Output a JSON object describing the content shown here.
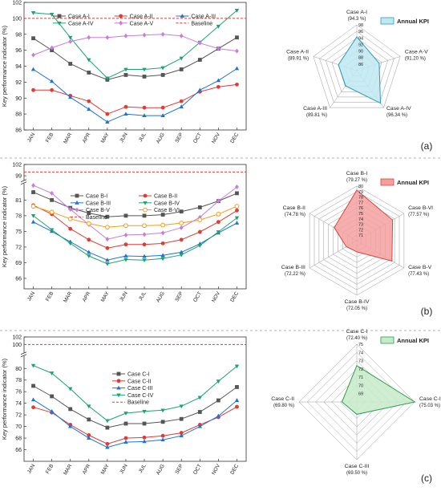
{
  "months": [
    "JAN",
    "FEB",
    "MAR",
    "APR",
    "MAY",
    "JUN",
    "JUL",
    "AUG",
    "SEP",
    "OCT",
    "NOV",
    "DEC"
  ],
  "chart_data": [
    {
      "type": "line",
      "panel_label": "(a)",
      "ylabel": "Key performance indicator (%)",
      "ylim": [
        86,
        102
      ],
      "yticks": [
        86,
        88,
        90,
        92,
        94,
        96,
        98,
        100,
        102
      ],
      "baseline": {
        "name": "Baseline",
        "value": 100,
        "color": "#e53935"
      },
      "series": [
        {
          "name": "Case A-I",
          "color": "#555555",
          "marker": "square",
          "values": [
            97.5,
            96.0,
            94.3,
            93.2,
            92.3,
            92.9,
            92.7,
            92.9,
            93.6,
            94.8,
            96.2,
            97.6
          ]
        },
        {
          "name": "Case A-II",
          "color": "#e53935",
          "marker": "circle",
          "values": [
            91.0,
            91.0,
            90.3,
            89.6,
            88.0,
            88.9,
            88.8,
            88.8,
            89.6,
            90.8,
            91.4,
            91.7
          ]
        },
        {
          "name": "Case A-III",
          "color": "#1e73d8",
          "marker": "triangle-up",
          "values": [
            93.6,
            92.1,
            90.1,
            88.6,
            87.0,
            88.0,
            87.8,
            87.8,
            88.9,
            91.0,
            92.2,
            93.7
          ]
        },
        {
          "name": "Case A-IV",
          "color": "#1aa56f",
          "marker": "triangle-down",
          "values": [
            100.7,
            100.5,
            97.6,
            94.8,
            92.5,
            93.6,
            93.6,
            93.8,
            95.0,
            97.0,
            99.0,
            101.0
          ]
        },
        {
          "name": "Case A-V",
          "color": "#c77ddc",
          "marker": "diamond",
          "values": [
            95.4,
            96.3,
            97.1,
            97.6,
            97.6,
            97.8,
            97.9,
            98.0,
            97.8,
            96.9,
            96.2,
            95.9
          ]
        }
      ],
      "legend_cols": 3,
      "radar": {
        "legend": "Annual KPI",
        "fill": "#bfe8f2",
        "stroke": "#2e9cb8",
        "rmin": 84,
        "rmax": 98,
        "ticks": [
          86,
          88,
          90,
          92,
          94,
          96,
          98
        ],
        "axes": [
          {
            "name": "Case A-I",
            "value_label": "(94.3 %)",
            "value": 94.3
          },
          {
            "name": "Case A-V",
            "value_label": "(91.20 %)",
            "value": 91.2
          },
          {
            "name": "Case A-IV",
            "value_label": "(96.34 %)",
            "value": 96.34
          },
          {
            "name": "Case A-III",
            "value_label": "(89.81 %)",
            "value": 89.81
          },
          {
            "name": "Case A-II",
            "value_label": "(89.91 %)",
            "value": 89.91
          }
        ]
      }
    },
    {
      "type": "line",
      "panel_label": "(b)",
      "ylabel": "Key performance indicator (%)",
      "ylim": [
        64,
        102
      ],
      "yticks": [
        66,
        69,
        72,
        75,
        78,
        81,
        99,
        102
      ],
      "axis_break": {
        "lower_max": 84,
        "upper_min": 98
      },
      "baseline": {
        "name": "Baseline",
        "value": 100,
        "color": "#e53935"
      },
      "series": [
        {
          "name": "Case B-I",
          "color": "#555555",
          "marker": "square",
          "values": [
            82.5,
            81.0,
            79.5,
            78.5,
            77.8,
            78.0,
            78.0,
            78.2,
            78.8,
            79.6,
            80.8,
            82.3
          ]
        },
        {
          "name": "Case B-II",
          "color": "#e53935",
          "marker": "circle",
          "values": [
            80.0,
            78.3,
            75.5,
            73.4,
            71.8,
            72.5,
            72.5,
            72.7,
            73.4,
            74.9,
            76.8,
            79.0
          ]
        },
        {
          "name": "Case B-III",
          "color": "#1e73d8",
          "marker": "triangle-up",
          "values": [
            76.8,
            75.0,
            73.0,
            71.0,
            69.5,
            70.3,
            70.2,
            70.4,
            71.0,
            72.6,
            74.7,
            76.6
          ]
        },
        {
          "name": "Case B-IV",
          "color": "#1aa56f",
          "marker": "triangle-down",
          "values": [
            78.0,
            75.3,
            72.7,
            70.3,
            68.8,
            69.6,
            69.5,
            69.8,
            70.5,
            72.3,
            74.9,
            77.6
          ]
        },
        {
          "name": "Case B-V",
          "color": "#c77ddc",
          "marker": "diamond",
          "values": [
            83.8,
            82.3,
            79.2,
            76.3,
            73.5,
            74.3,
            74.4,
            74.7,
            75.7,
            77.7,
            80.8,
            83.5
          ]
        },
        {
          "name": "Case B-VI",
          "color": "#f39c12",
          "marker": "circle-open",
          "values": [
            79.8,
            78.7,
            77.4,
            76.5,
            75.8,
            76.1,
            76.1,
            76.2,
            76.6,
            77.2,
            78.3,
            79.8
          ]
        }
      ],
      "legend_cols": 2,
      "radar": {
        "legend": "Annual KPI",
        "fill": "#f4a0a0",
        "stroke": "#d9453c",
        "rmin": 70,
        "rmax": 80,
        "ticks": [
          71,
          72,
          73,
          74,
          75,
          76,
          77,
          78,
          79,
          80
        ],
        "axes": [
          {
            "name": "Case B-I",
            "value_label": "(79.27 %)",
            "value": 79.27
          },
          {
            "name": "Case B-VI",
            "value_label": "(77.57 %)",
            "value": 77.57
          },
          {
            "name": "Case B-V",
            "value_label": "(77.43 %)",
            "value": 77.43
          },
          {
            "name": "Case B-IV",
            "value_label": "(72.05 %)",
            "value": 72.05
          },
          {
            "name": "Case B-III",
            "value_label": "(72.22 %)",
            "value": 72.22
          },
          {
            "name": "Case B-II",
            "value_label": "(74.78 %)",
            "value": 74.78
          }
        ]
      }
    },
    {
      "type": "line",
      "panel_label": "(c)",
      "ylabel": "Key performance indicator (%)",
      "ylim": [
        64,
        102
      ],
      "yticks": [
        66,
        68,
        70,
        72,
        74,
        76,
        78,
        80,
        100,
        102
      ],
      "axis_break": {
        "lower_max": 82,
        "upper_min": 98
      },
      "baseline": {
        "name": "Baseline",
        "value": 100,
        "color": "#e53935"
      },
      "series": [
        {
          "name": "Case C-I",
          "color": "#555555",
          "marker": "square",
          "values": [
            77.0,
            75.2,
            73.0,
            71.2,
            69.8,
            70.5,
            70.5,
            70.8,
            71.3,
            72.5,
            74.5,
            76.8
          ]
        },
        {
          "name": "Case C-II",
          "color": "#e53935",
          "marker": "circle",
          "values": [
            73.3,
            72.4,
            70.3,
            68.5,
            67.0,
            68.0,
            68.1,
            68.4,
            68.9,
            70.3,
            71.6,
            73.4
          ]
        },
        {
          "name": "Case C-III",
          "color": "#1e73d8",
          "marker": "triangle-up",
          "values": [
            74.6,
            72.6,
            70.0,
            68.0,
            66.4,
            67.3,
            67.4,
            67.7,
            68.4,
            70.0,
            71.8,
            74.5
          ]
        },
        {
          "name": "Case C-IV",
          "color": "#1aa56f",
          "marker": "triangle-down",
          "values": [
            80.5,
            79.2,
            76.5,
            73.5,
            71.0,
            72.3,
            72.6,
            72.8,
            73.5,
            75.0,
            77.8,
            80.4
          ]
        }
      ],
      "legend_cols": 1,
      "radar": {
        "legend": "Annual KPI",
        "fill": "#c7ebc9",
        "stroke": "#2e9e4f",
        "rmin": 68,
        "rmax": 75,
        "ticks": [
          69,
          70,
          71,
          72,
          73,
          74,
          75
        ],
        "axes": [
          {
            "name": "Case C-I",
            "value_label": "(72.40 %)",
            "value": 72.4
          },
          {
            "name": "Case C-IV",
            "value_label": "(75.03 %)",
            "value": 75.03
          },
          {
            "name": "Case C-III",
            "value_label": "(69.50 %)",
            "value": 69.5
          },
          {
            "name": "Case C-II",
            "value_label": "(69.80 %)",
            "value": 69.8
          }
        ]
      }
    }
  ]
}
